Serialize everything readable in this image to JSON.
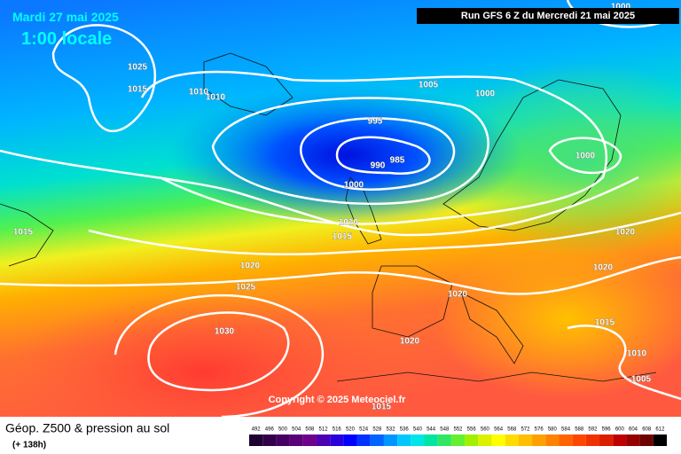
{
  "header": {
    "date": "Mardi 27 mai 2025",
    "time": "1:00 locale",
    "run": "Run GFS 6 Z du Mercredi 21 mai 2025"
  },
  "isobar_labels": [
    "1000",
    "1025",
    "1015",
    "1010",
    "1010",
    "1005",
    "1000",
    "995",
    "990",
    "985",
    "1000",
    "1000",
    "1015",
    "1010",
    "1015",
    "1020",
    "1020",
    "1025",
    "1020",
    "1020",
    "1030",
    "1015",
    "1020",
    "1010",
    "1005",
    "1015"
  ],
  "copyright": "Copyright © 2025 Meteociel.fr",
  "footer": {
    "title": "Géop. Z500 & pression au sol",
    "subtitle": "(+ 138h)"
  },
  "scale": {
    "labels": [
      "492",
      "496",
      "500",
      "504",
      "508",
      "512",
      "516",
      "520",
      "524",
      "528",
      "532",
      "536",
      "540",
      "544",
      "548",
      "552",
      "556",
      "560",
      "564",
      "568",
      "572",
      "576",
      "580",
      "584",
      "588",
      "592",
      "596",
      "600",
      "604",
      "608",
      "612"
    ],
    "colors": [
      "#1e0032",
      "#32004b",
      "#460064",
      "#5a0078",
      "#6e008c",
      "#4b00b4",
      "#2800dc",
      "#0000ff",
      "#0032ff",
      "#0064ff",
      "#0096ff",
      "#00c8ff",
      "#00e6e6",
      "#00e6a0",
      "#32e664",
      "#64f032",
      "#a0f000",
      "#dcf000",
      "#ffff00",
      "#ffdc00",
      "#ffbe00",
      "#ffa000",
      "#ff8200",
      "#ff6400",
      "#ff4600",
      "#f03200",
      "#dc1e00",
      "#be0000",
      "#960000",
      "#6e0000",
      "#000000"
    ]
  }
}
